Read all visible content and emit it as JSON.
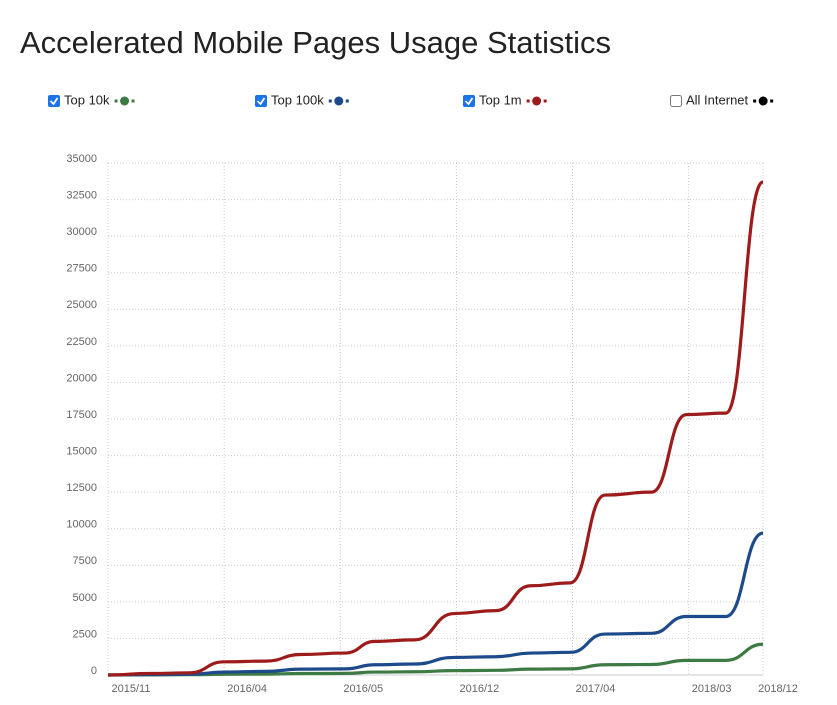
{
  "chart_data": {
    "type": "line",
    "title": "Accelerated Mobile Pages Usage Statistics",
    "x": [
      0,
      1.8,
      3.5,
      5,
      6.8,
      8.3,
      10.2,
      11.5,
      13.2,
      14.9,
      16.7,
      18.2,
      19.9,
      21.4,
      23.4,
      24.9,
      26.6,
      28.2
    ],
    "series": [
      {
        "name": "Top 10k",
        "color": "#3e7a44",
        "checked": true,
        "values": [
          0,
          10,
          20,
          50,
          60,
          100,
          110,
          200,
          220,
          300,
          320,
          400,
          420,
          700,
          720,
          1000,
          1000,
          2100
        ]
      },
      {
        "name": "Top 100k",
        "color": "#1d4a8a",
        "checked": true,
        "values": [
          0,
          30,
          50,
          200,
          250,
          400,
          420,
          700,
          750,
          1200,
          1250,
          1500,
          1550,
          2800,
          2850,
          4000,
          4000,
          9700
        ]
      },
      {
        "name": "Top 1m",
        "color": "#9e1b1b",
        "checked": true,
        "values": [
          0,
          100,
          150,
          900,
          950,
          1400,
          1500,
          2300,
          2400,
          4200,
          4400,
          6100,
          6300,
          12300,
          12500,
          17800,
          17900,
          33700
        ]
      }
    ],
    "hidden_series": [
      {
        "name": "All Internet",
        "color": "#000000",
        "checked": false
      }
    ],
    "xlim": [
      0,
      28.2
    ],
    "xticks": [
      {
        "value": 0,
        "label": "2015/11"
      },
      {
        "value": 5,
        "label": "2016/04"
      },
      {
        "value": 10,
        "label": "2016/05"
      },
      {
        "value": 15,
        "label": "2016/12"
      },
      {
        "value": 20,
        "label": "2017/04"
      },
      {
        "value": 25,
        "label": "2018/03"
      },
      {
        "value": 28.2,
        "label": "2018/12"
      }
    ],
    "ylim": [
      0,
      35000
    ],
    "yticks": [
      0,
      2500,
      5000,
      7500,
      10000,
      12500,
      15000,
      17500,
      20000,
      22500,
      25000,
      27500,
      30000,
      32500,
      35000
    ],
    "grid": true
  }
}
